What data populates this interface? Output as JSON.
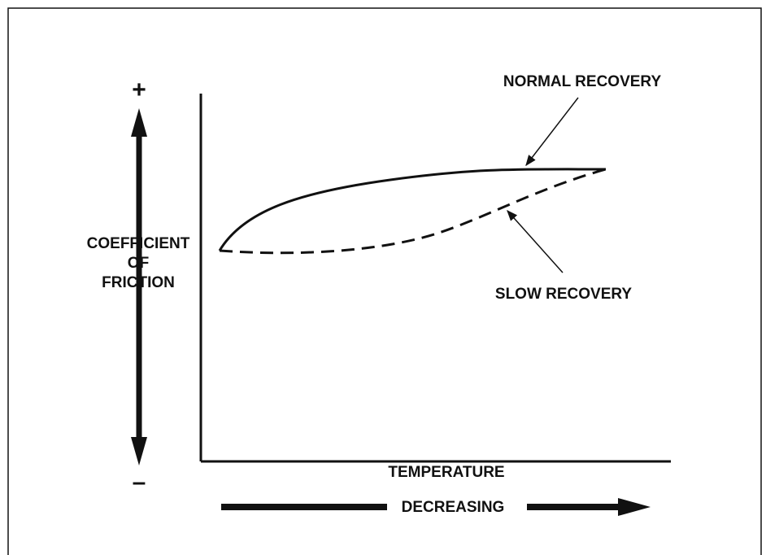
{
  "plus": "+",
  "minus": "–",
  "y_label": [
    "COEFFICIENT",
    "OF",
    "FRICTION"
  ],
  "normal_label": "NORMAL RECOVERY",
  "slow_label": "SLOW RECOVERY",
  "x_label": "TEMPERATURE",
  "direction_label": "DECREASING"
}
